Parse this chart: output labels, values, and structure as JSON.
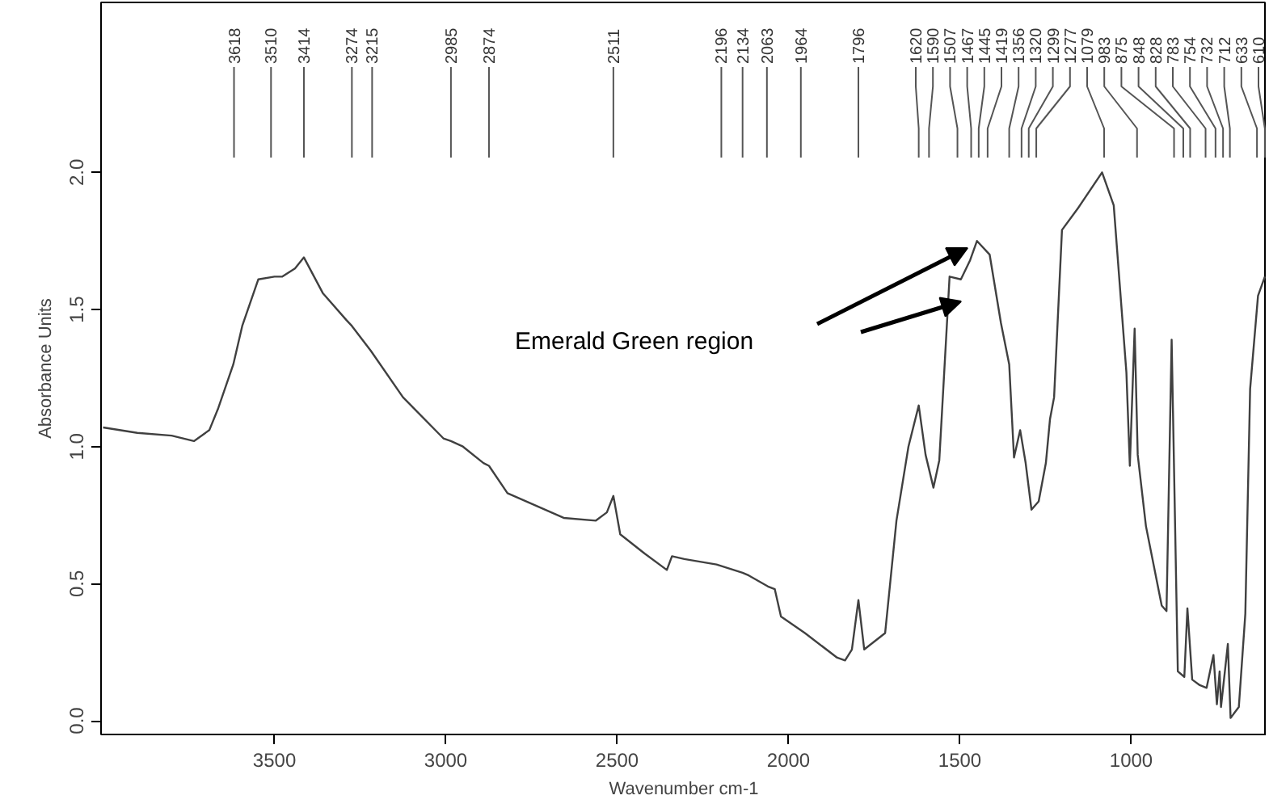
{
  "chart_data": {
    "type": "line",
    "xlabel": "Wavenumber cm-1",
    "ylabel": "Absorbance Units",
    "xlim": [
      4006,
      605
    ],
    "ylim": [
      -0.05,
      2.62
    ],
    "xticks": [
      3500,
      3000,
      2500,
      2000,
      1500,
      1000
    ],
    "yticks": [
      {
        "value": 0,
        "label": "0.0"
      },
      {
        "value": 0.5,
        "label": "0.5"
      },
      {
        "value": 1,
        "label": "1.0"
      },
      {
        "value": 1.5,
        "label": "1.5"
      },
      {
        "value": 2,
        "label": "2.0"
      }
    ],
    "grid": false,
    "marker": "none",
    "line_style": "solid",
    "series": [
      {
        "color": "#404040",
        "x": [
          4000,
          3900,
          3800,
          3735,
          3690,
          3664,
          3620,
          3594,
          3547,
          3500,
          3477,
          3440,
          3414,
          3359,
          3289,
          3274,
          3219,
          3125,
          3007,
          2985,
          2950,
          2890,
          2874,
          2820,
          2656,
          2562,
          2530,
          2511,
          2491,
          2420,
          2355,
          2340,
          2304,
          2210,
          2134,
          2116,
          2060,
          2040,
          2022,
          1952,
          1858,
          1835,
          1815,
          1796,
          1779,
          1718,
          1685,
          1650,
          1620,
          1600,
          1577,
          1560,
          1530,
          1497,
          1470,
          1450,
          1413,
          1380,
          1356,
          1342,
          1324,
          1308,
          1291,
          1270,
          1249,
          1237,
          1225,
          1202,
          1155,
          1085,
          1051,
          1014,
          1004,
          990,
          981,
          957,
          911,
          897,
          882,
          864,
          845,
          836,
          822,
          800,
          780,
          760,
          750,
          742,
          738,
          718,
          710,
          686,
          667,
          653,
          630,
          610
        ],
        "values": [
          1.07,
          1.05,
          1.04,
          1.02,
          1.06,
          1.14,
          1.3,
          1.44,
          1.61,
          1.62,
          1.62,
          1.65,
          1.69,
          1.56,
          1.46,
          1.44,
          1.35,
          1.18,
          1.03,
          1.02,
          1.0,
          0.94,
          0.93,
          0.83,
          0.74,
          0.73,
          0.76,
          0.82,
          0.68,
          0.61,
          0.55,
          0.6,
          0.59,
          0.57,
          0.54,
          0.53,
          0.49,
          0.48,
          0.38,
          0.32,
          0.23,
          0.22,
          0.26,
          0.44,
          0.26,
          0.32,
          0.73,
          1.0,
          1.15,
          0.97,
          0.85,
          0.95,
          1.62,
          1.61,
          1.68,
          1.75,
          1.7,
          1.45,
          1.3,
          0.96,
          1.06,
          0.94,
          0.77,
          0.8,
          0.94,
          1.1,
          1.18,
          1.79,
          1.87,
          2.0,
          1.88,
          1.27,
          0.93,
          1.43,
          0.97,
          0.71,
          0.42,
          0.4,
          1.39,
          0.18,
          0.16,
          0.41,
          0.15,
          0.13,
          0.12,
          0.24,
          0.06,
          0.18,
          0.05,
          0.28,
          0.01,
          0.05,
          0.39,
          1.21,
          1.55,
          1.62
        ]
      }
    ],
    "annotations": [
      "Emerald Green region",
      {
        "text": "3618",
        "x": 3618
      },
      {
        "text": "3510",
        "x": 3510
      },
      {
        "text": "3414",
        "x": 3414
      },
      {
        "text": "3274",
        "x": 3274
      },
      {
        "text": "3215",
        "x": 3215
      },
      {
        "text": "2985",
        "x": 2985
      },
      {
        "text": "2874",
        "x": 2874
      },
      {
        "text": "2511",
        "x": 2511
      },
      {
        "text": "2196",
        "x": 2196
      },
      {
        "text": "2134",
        "x": 2134
      },
      {
        "text": "2063",
        "x": 2063
      },
      {
        "text": "1964",
        "x": 1964
      },
      {
        "text": "1796",
        "x": 1796
      },
      {
        "text": "1620",
        "x": 1620
      },
      {
        "text": "1590",
        "x": 1590
      },
      {
        "text": "1507",
        "x": 1507
      },
      {
        "text": "1467",
        "x": 1467
      },
      {
        "text": "1445",
        "x": 1445
      },
      {
        "text": "1419",
        "x": 1419
      },
      {
        "text": "1356",
        "x": 1356
      },
      {
        "text": "1320",
        "x": 1320
      },
      {
        "text": "1299",
        "x": 1299
      },
      {
        "text": "1277",
        "x": 1277
      },
      {
        "text": "1079",
        "x": 1079
      },
      {
        "text": "983",
        "x": 983
      },
      {
        "text": "875",
        "x": 875
      },
      {
        "text": "848",
        "x": 848
      },
      {
        "text": "828",
        "x": 828
      },
      {
        "text": "783",
        "x": 783
      },
      {
        "text": "754",
        "x": 754
      },
      {
        "text": "732",
        "x": 732
      },
      {
        "text": "712",
        "x": 712
      },
      {
        "text": "633",
        "x": 633
      },
      {
        "text": "610",
        "x": 610
      }
    ]
  }
}
